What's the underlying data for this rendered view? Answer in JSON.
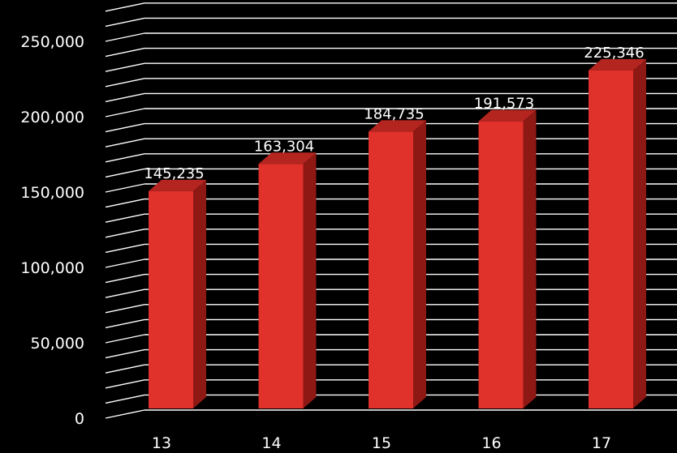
{
  "chart_data": {
    "type": "bar",
    "categories": [
      "13",
      "14",
      "15",
      "16",
      "17"
    ],
    "series": [
      {
        "values": [
          145235,
          163304,
          184735,
          191573,
          225346
        ]
      }
    ],
    "data_labels": [
      "145,235",
      "163,304",
      "184,735",
      "191,573",
      "225,346"
    ],
    "y_tick_labels": [
      "0",
      "50,000",
      "100,000",
      "150,000",
      "200,000",
      "250,000"
    ],
    "y_ticks": [
      0,
      50000,
      100000,
      150000,
      200000,
      250000
    ],
    "ylim": [
      0,
      270000
    ],
    "y_grid_step": 10000,
    "grid": true,
    "legend": false,
    "style": "3d-column"
  },
  "colors": {
    "background": "#000000",
    "bar_front": "#e0312a",
    "bar_side": "#8e1814",
    "bar_top": "#b52520",
    "grid": "#ffffff",
    "text": "#ffffff"
  }
}
